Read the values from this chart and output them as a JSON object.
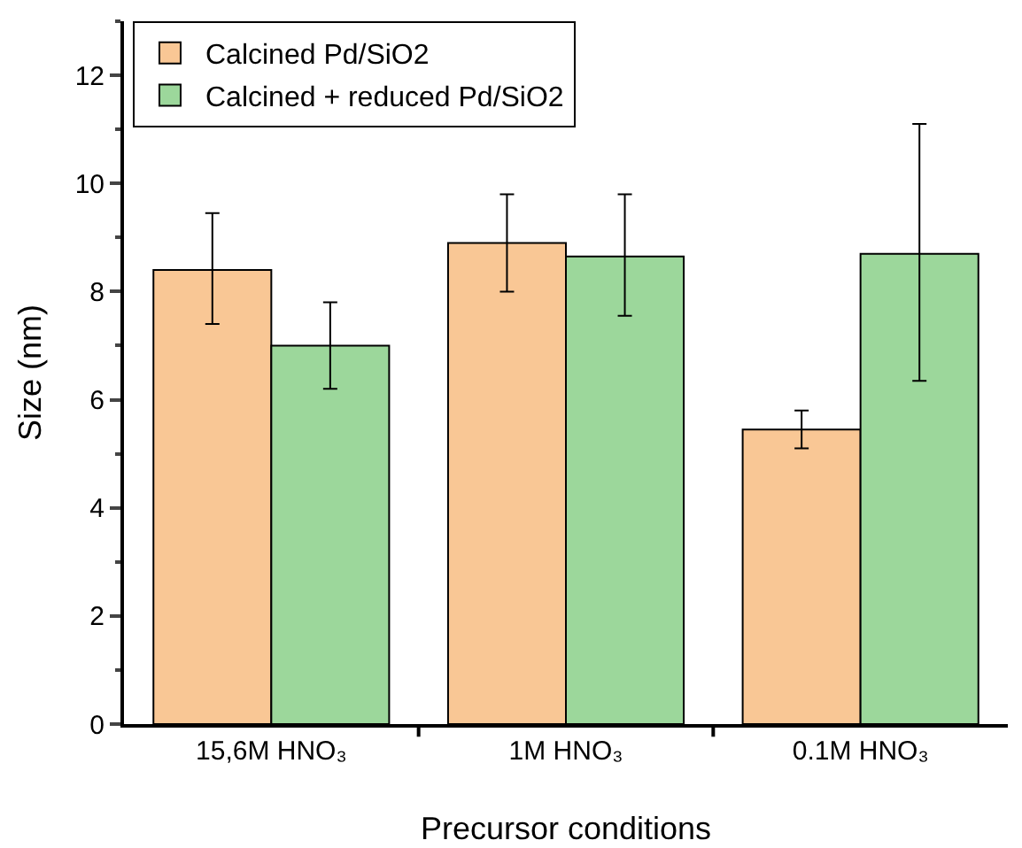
{
  "chart_data": {
    "type": "bar",
    "xlabel": "Precursor conditions",
    "ylabel": "Size (nm)",
    "categories": [
      "15,6M HNO₃",
      "1M HNO₃",
      "0.1M HNO₃"
    ],
    "series": [
      {
        "name": "Calcined Pd/SiO2",
        "color": "#f9c795",
        "values": [
          8.4,
          8.9,
          5.45
        ],
        "errors": [
          [
            7.4,
            9.45
          ],
          [
            8.0,
            9.8
          ],
          [
            5.1,
            5.8
          ]
        ]
      },
      {
        "name": "Calcined + reduced Pd/SiO2",
        "color": "#9cd79b",
        "values": [
          7.0,
          8.65,
          8.7
        ],
        "errors": [
          [
            6.2,
            7.8
          ],
          [
            7.55,
            9.8
          ],
          [
            6.35,
            11.1
          ]
        ]
      }
    ],
    "ylim": [
      0,
      13
    ],
    "yticks": [
      0,
      2,
      4,
      6,
      8,
      10,
      12
    ],
    "grid": false,
    "legend": "top left"
  }
}
